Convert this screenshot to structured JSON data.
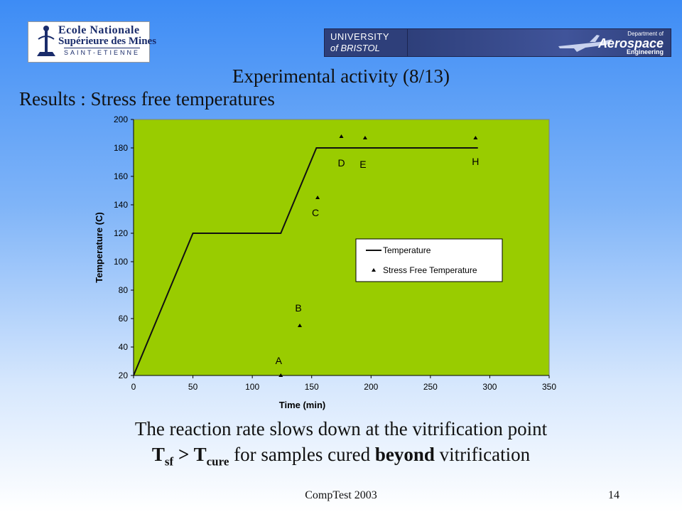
{
  "logos": {
    "left": {
      "line1": "Ecole Nationale",
      "line2": "Supérieure des Mines",
      "line3": "SAINT-ETIENNE"
    },
    "bristol": {
      "line1": "UNIVERSITY",
      "line2": "of BRISTOL"
    },
    "aerospace": {
      "line1": "Department of",
      "line2": "Aerospace",
      "line3": "Engineering"
    }
  },
  "slide": {
    "title": "Experimental activity (8/13)",
    "subtitle": "Results : Stress free temperatures",
    "caption_line1": "The reaction rate slows down at the vitrification point",
    "caption_line2": {
      "t1": "T",
      "sub1": "sf",
      "op": " > T",
      "sub2": "cure",
      "mid": " for samples cured ",
      "bold": "beyond",
      "end": " vitrification"
    },
    "footer_center": "CompTest 2003",
    "page_number": "14"
  },
  "colors": {
    "plot_bg": "#99cc00",
    "line": "#111111"
  },
  "chart_data": {
    "type": "line",
    "xlabel": "Time (min)",
    "ylabel": "Temperature (C)",
    "xlim": [
      0,
      350
    ],
    "ylim": [
      20,
      200
    ],
    "xticks": [
      0,
      50,
      100,
      150,
      200,
      250,
      300,
      350
    ],
    "yticks": [
      20,
      40,
      60,
      80,
      100,
      120,
      140,
      160,
      180,
      200
    ],
    "grid": false,
    "legend_position": "right-middle",
    "series": [
      {
        "name": "Temperature",
        "type": "line",
        "x": [
          0,
          50,
          124,
          154,
          290
        ],
        "y": [
          20,
          120,
          120,
          180,
          180
        ]
      },
      {
        "name": "Stress Free Temperature",
        "type": "scatter",
        "marker": "triangle",
        "points": [
          {
            "x": 124,
            "y": 20,
            "label": "A"
          },
          {
            "x": 140,
            "y": 55,
            "label": "B"
          },
          {
            "x": 155,
            "y": 145,
            "label": "C"
          },
          {
            "x": 175,
            "y": 188,
            "label": "D"
          },
          {
            "x": 195,
            "y": 187,
            "label": "E"
          },
          {
            "x": 288,
            "y": 187,
            "label": "H"
          }
        ]
      }
    ]
  }
}
